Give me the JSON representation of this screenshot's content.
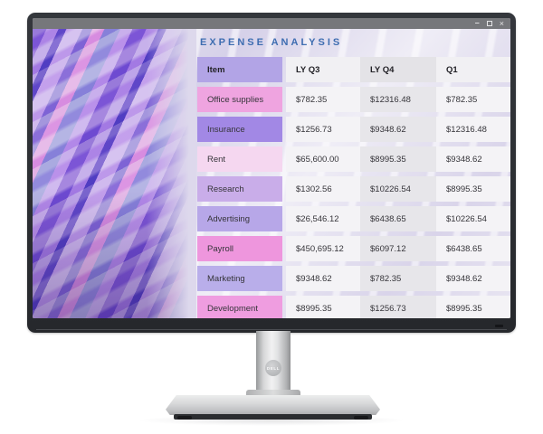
{
  "window": {
    "controls": {
      "minimize_glyph": "–",
      "close_glyph": "×"
    }
  },
  "sheet": {
    "title": "EXPENSE ANALYSIS"
  },
  "table": {
    "columns": [
      "Item",
      "LY Q3",
      "LY Q4",
      "Q1"
    ],
    "rows": [
      {
        "item": "Office supplies",
        "values": [
          "$782.35",
          "$12316.48",
          "$782.35"
        ],
        "item_color": "#efa4e0"
      },
      {
        "item": "Insurance",
        "values": [
          "$1256.73",
          "$9348.62",
          "$12316.48"
        ],
        "item_color": "#a288e5"
      },
      {
        "item": "Rent",
        "values": [
          "$65,600.00",
          "$8995.35",
          "$9348.62"
        ],
        "item_color": "#f5d7f0"
      },
      {
        "item": "Research",
        "values": [
          "$1302.56",
          "$10226.54",
          "$8995.35"
        ],
        "item_color": "#c9ade9"
      },
      {
        "item": "Advertising",
        "values": [
          "$26,546.12",
          "$6438.65",
          "$10226.54"
        ],
        "item_color": "#b7a7e8"
      },
      {
        "item": "Payroll",
        "values": [
          "$450,695.12",
          "$6097.12",
          "$6438.65"
        ],
        "item_color": "#ee96dd"
      },
      {
        "item": "Marketing",
        "values": [
          "$9348.62",
          "$782.35",
          "$9348.62"
        ],
        "item_color": "#b9aeea"
      },
      {
        "item": "Development",
        "values": [
          "$8995.35",
          "$1256.73",
          "$8995.35"
        ],
        "item_color": "#ef9de0"
      }
    ]
  },
  "colors": {
    "header_item_bg": "#b2a4e6",
    "col_light_bg": "#f4f3f6",
    "col_dark_bg": "#e7e6ea",
    "header_col_light_bg": "#f1f0f3",
    "header_col_dark_bg": "#e4e3e7",
    "title_text": "#3e6db1"
  },
  "monitor": {
    "brand": "DELL"
  }
}
